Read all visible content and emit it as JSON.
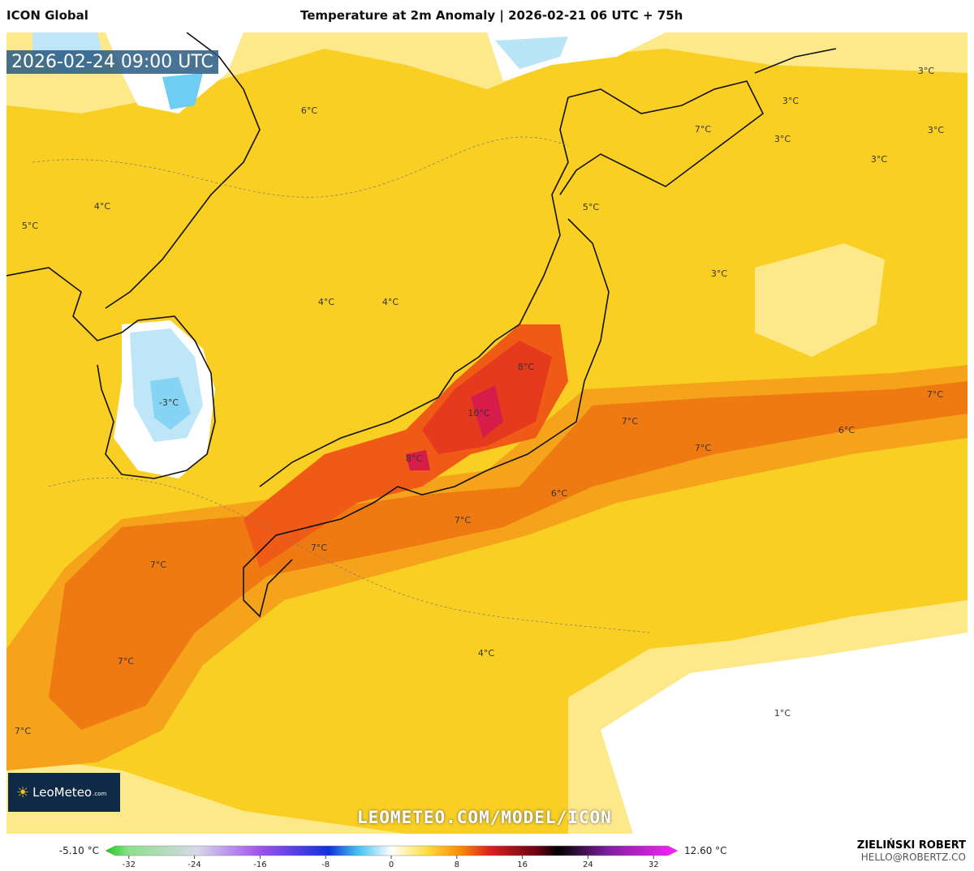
{
  "header": {
    "model": "ICON Global",
    "title": "Temperature at 2m Anomaly | 2026-02-21 06 UTC + 75h"
  },
  "valid_time": "2026-02-24 09:00 UTC",
  "map_labels": [
    "6°C",
    "4°C",
    "5°C",
    "4°C",
    "4°C",
    "-3°C",
    "3°C",
    "3°C",
    "7°C",
    "3°C",
    "3°C",
    "3°C",
    "5°C",
    "3°C",
    "8°C",
    "10°C",
    "7°C",
    "6°C",
    "7°C",
    "7°C",
    "8°C",
    "6°C",
    "7°C",
    "7°C",
    "7°C",
    "4°C",
    "7°C",
    "1°C",
    "7°C"
  ],
  "logo": {
    "name": "LeoMeteo",
    "suffix": ".com"
  },
  "watermark": "LEOMETEO.COM/MODEL/ICON",
  "colorbar": {
    "min_label": "-5.10 °C",
    "max_label": "12.60 °C",
    "ticks": [
      -32,
      -24,
      -16,
      -8,
      0,
      8,
      16,
      24,
      32
    ]
  },
  "author": {
    "name": "ZIELIŃSKI ROBERT",
    "email": "HELLO@ROBERTZ.CO"
  }
}
